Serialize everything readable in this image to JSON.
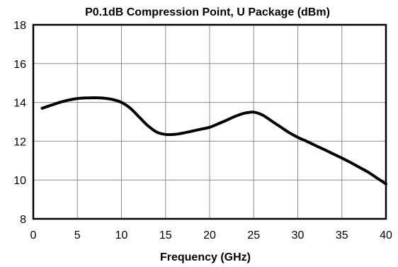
{
  "chart_data": {
    "type": "line",
    "title": "P0.1dB Compression Point, U Package (dBm)",
    "xlabel": "Frequency (GHz)",
    "ylabel": "",
    "xlim": [
      0,
      40
    ],
    "ylim": [
      8,
      18
    ],
    "xticks": [
      0,
      5,
      10,
      15,
      20,
      25,
      30,
      35,
      40
    ],
    "yticks": [
      8,
      10,
      12,
      14,
      16,
      18
    ],
    "grid": true,
    "legend": "none",
    "line_color": "#000000",
    "series": [
      {
        "x": [
          1,
          2,
          3,
          4,
          5,
          6,
          7,
          8,
          9,
          10,
          11,
          12,
          13,
          14,
          15,
          16,
          17,
          18,
          19,
          20,
          21,
          22,
          23,
          24,
          25,
          26,
          27,
          28,
          29,
          30,
          31,
          32,
          33,
          34,
          35,
          36,
          37,
          38,
          39,
          40
        ],
        "values": [
          13.7,
          13.85,
          14.0,
          14.12,
          14.2,
          14.23,
          14.24,
          14.22,
          14.15,
          14.0,
          13.7,
          13.25,
          12.8,
          12.47,
          12.35,
          12.35,
          12.42,
          12.52,
          12.62,
          12.72,
          12.9,
          13.1,
          13.3,
          13.45,
          13.5,
          13.35,
          13.05,
          12.75,
          12.45,
          12.2,
          12.0,
          11.78,
          11.57,
          11.35,
          11.13,
          10.9,
          10.65,
          10.4,
          10.1,
          9.8
        ]
      }
    ]
  }
}
